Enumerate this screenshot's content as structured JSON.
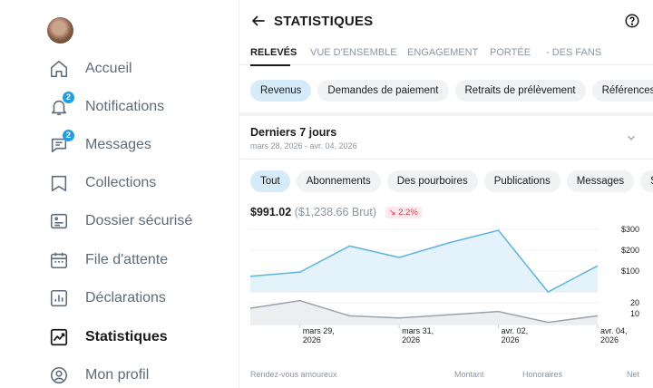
{
  "sidebar": {
    "items": [
      {
        "label": "Accueil",
        "icon": "home-icon"
      },
      {
        "label": "Notifications",
        "icon": "bell-icon",
        "badge": "2"
      },
      {
        "label": "Messages",
        "icon": "message-icon",
        "badge": "2"
      },
      {
        "label": "Collections",
        "icon": "bookmark-icon"
      },
      {
        "label": "Dossier sécurisé",
        "icon": "vault-icon"
      },
      {
        "label": "File d'attente",
        "icon": "calendar-icon"
      },
      {
        "label": "Déclarations",
        "icon": "report-icon"
      },
      {
        "label": "Statistiques",
        "icon": "stats-icon",
        "active": true
      },
      {
        "label": "Mon profil",
        "icon": "profile-icon"
      }
    ]
  },
  "header": {
    "title": "STATISTIQUES"
  },
  "tabs": [
    {
      "label": "RELEVÉS",
      "active": true
    },
    {
      "label": "VUE D'ENSEMBLE"
    },
    {
      "label": "ENGAGEMENT"
    },
    {
      "label": "PORTÉE"
    },
    {
      "label": "- DES FANS"
    }
  ],
  "type_chips": [
    {
      "label": "Revenus",
      "active": true
    },
    {
      "label": "Demandes de paiement"
    },
    {
      "label": "Retraits de prélèvement"
    },
    {
      "label": "Références"
    }
  ],
  "period": {
    "title": "Derniers 7 jours",
    "range": "mars 28, 2026 - avr. 04, 2026"
  },
  "filter_chips": [
    {
      "label": "Tout",
      "active": true
    },
    {
      "label": "Abonnements"
    },
    {
      "label": "Des pourboires"
    },
    {
      "label": "Publications"
    },
    {
      "label": "Messages"
    },
    {
      "label": "Stream"
    }
  ],
  "summary": {
    "net": "$991.02",
    "gross": "($1,238.66 Brut)",
    "trend": "2.2%"
  },
  "chart_data": {
    "type": "area",
    "x": [
      "mars 28, 2026",
      "mars 29, 2026",
      "mars 30, 2026",
      "mars 31, 2026",
      "avr. 01, 2026",
      "avr. 02, 2026",
      "avr. 03, 2026",
      "avr. 04, 2026"
    ],
    "x_tick_labels": [
      {
        "line1": "mars 29,",
        "line2": "2026",
        "index": 1
      },
      {
        "line1": "mars 31,",
        "line2": "2026",
        "index": 3
      },
      {
        "line1": "avr. 02,",
        "line2": "2026",
        "index": 5
      },
      {
        "line1": "avr. 04,",
        "line2": "2026",
        "index": 7
      }
    ],
    "series": [
      {
        "values": [
          75,
          95,
          220,
          165,
          235,
          295,
          0,
          125
        ],
        "color": "#5fb3e2",
        "fill": "#e3f2fb",
        "ylim": [
          0,
          330
        ],
        "ticks": [
          "$300",
          "$200",
          "$100"
        ],
        "tick_values": [
          300,
          200,
          100
        ]
      },
      {
        "values": [
          15,
          22,
          8,
          6,
          9,
          12,
          2,
          8
        ],
        "color": "#9aa3ad",
        "fill": "#eceef0",
        "ylim": [
          0,
          25
        ],
        "ticks": [
          "20",
          "10"
        ],
        "tick_values": [
          20,
          10
        ]
      }
    ],
    "grid": true
  },
  "table": {
    "columns": [
      "Rendez-vous amoureux",
      "Montant",
      "Honoraires",
      "Net"
    ]
  }
}
